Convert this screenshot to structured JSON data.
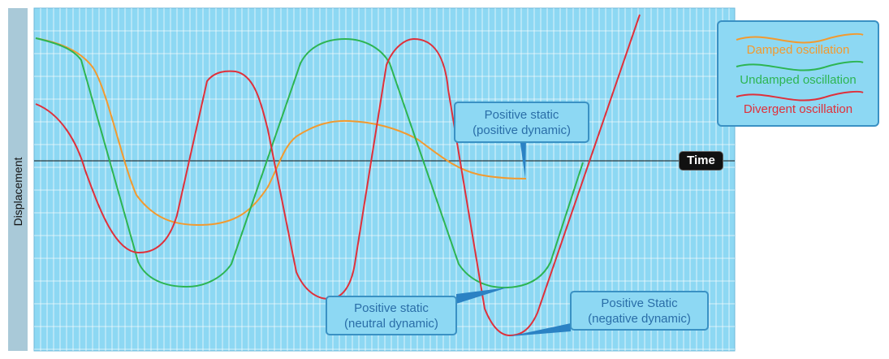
{
  "axis": {
    "ylabel": "Displacement",
    "xlabel": "Time"
  },
  "colors": {
    "damped": "#f39a2e",
    "undamped": "#2db552",
    "divergent": "#e0303a",
    "plot_bg": "#8dd8f3",
    "grid": "#ffffff",
    "callout_text": "#2a6ea8"
  },
  "legend": {
    "items": [
      {
        "label": "Damped oscillation",
        "color": "#f39a2e"
      },
      {
        "label": "Undamped oscillation",
        "color": "#2db552"
      },
      {
        "label": "Divergent oscillation",
        "color": "#e0303a"
      }
    ]
  },
  "callouts": {
    "positive_dynamic": {
      "line1": "Positive static",
      "line2": "(positive dynamic)"
    },
    "neutral_dynamic": {
      "line1": "Positive static",
      "line2": "(neutral dynamic)"
    },
    "negative_dynamic": {
      "line1": "Positive Static",
      "line2": "(negative dynamic)"
    }
  }
}
